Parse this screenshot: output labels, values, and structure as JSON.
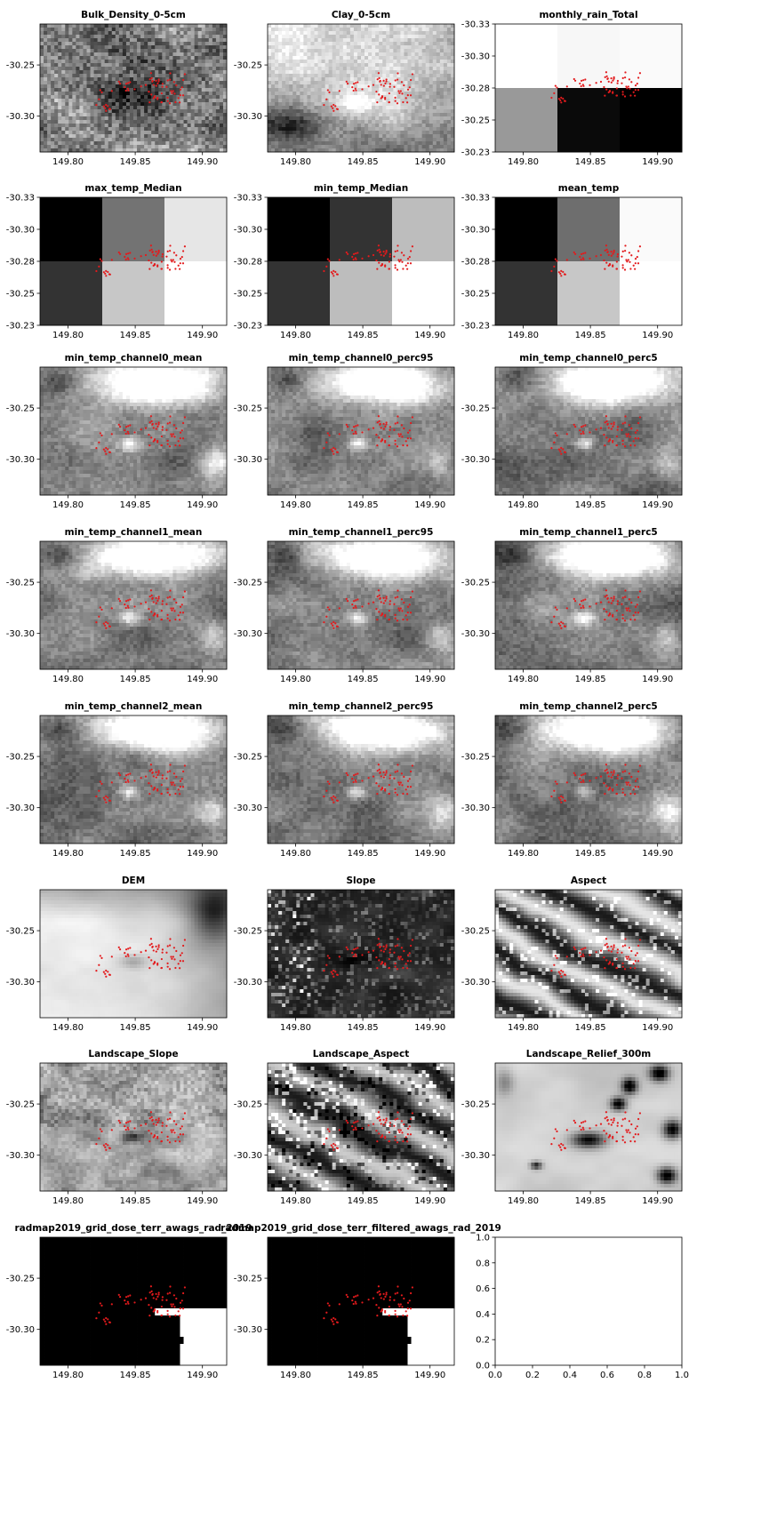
{
  "chart_data": [
    {
      "type": "heatmap",
      "title": "Bulk_Density_0-5cm",
      "texture": "bulk",
      "xticks": [
        "149.80",
        "149.85",
        "149.90"
      ],
      "yticks": [
        "-30.25",
        "-30.30"
      ]
    },
    {
      "type": "heatmap",
      "title": "Clay_0-5cm",
      "texture": "clay",
      "xticks": [
        "149.80",
        "149.85",
        "149.90"
      ],
      "yticks": [
        "-30.25",
        "-30.30"
      ]
    },
    {
      "type": "heatmap",
      "title": "monthly_rain_Total",
      "texture": "grid",
      "cells": [
        [
          1.0,
          0.97,
          0.98
        ],
        [
          0.6,
          0.04,
          0.0
        ]
      ],
      "xticks": [
        "149.80",
        "149.85",
        "149.90"
      ],
      "yticks": [
        "-30.33",
        "-30.30",
        "-30.28",
        "-30.25",
        "-30.23"
      ]
    },
    {
      "type": "heatmap",
      "title": "max_temp_Median",
      "texture": "grid",
      "cells": [
        [
          0.0,
          0.45,
          0.9
        ],
        [
          0.2,
          0.78,
          1.0
        ]
      ],
      "xticks": [
        "149.80",
        "149.85",
        "149.90"
      ],
      "yticks": [
        "-30.33",
        "-30.30",
        "-30.28",
        "-30.25",
        "-30.23"
      ]
    },
    {
      "type": "heatmap",
      "title": "min_temp_Median",
      "texture": "grid",
      "cells": [
        [
          0.0,
          0.2,
          0.74
        ],
        [
          0.2,
          0.74,
          1.0
        ]
      ],
      "xticks": [
        "149.80",
        "149.85",
        "149.90"
      ],
      "yticks": [
        "-30.33",
        "-30.30",
        "-30.28",
        "-30.25",
        "-30.23"
      ]
    },
    {
      "type": "heatmap",
      "title": "mean_temp",
      "texture": "grid",
      "cells": [
        [
          0.0,
          0.43,
          0.98
        ],
        [
          0.2,
          0.78,
          1.0
        ]
      ],
      "xticks": [
        "149.80",
        "149.85",
        "149.90"
      ],
      "yticks": [
        "-30.33",
        "-30.30",
        "-30.28",
        "-30.25",
        "-30.23"
      ]
    },
    {
      "type": "heatmap",
      "title": "min_temp_channel0_mean",
      "texture": "temp",
      "xticks": [
        "149.80",
        "149.85",
        "149.90"
      ],
      "yticks": [
        "-30.25",
        "-30.30"
      ]
    },
    {
      "type": "heatmap",
      "title": "min_temp_channel0_perc95",
      "texture": "temp",
      "xticks": [
        "149.80",
        "149.85",
        "149.90"
      ],
      "yticks": [
        "-30.25",
        "-30.30"
      ]
    },
    {
      "type": "heatmap",
      "title": "min_temp_channel0_perc5",
      "texture": "temp",
      "xticks": [
        "149.80",
        "149.85",
        "149.90"
      ],
      "yticks": [
        "-30.25",
        "-30.30"
      ]
    },
    {
      "type": "heatmap",
      "title": "min_temp_channel1_mean",
      "texture": "temp",
      "xticks": [
        "149.80",
        "149.85",
        "149.90"
      ],
      "yticks": [
        "-30.25",
        "-30.30"
      ]
    },
    {
      "type": "heatmap",
      "title": "min_temp_channel1_perc95",
      "texture": "temp",
      "xticks": [
        "149.80",
        "149.85",
        "149.90"
      ],
      "yticks": [
        "-30.25",
        "-30.30"
      ]
    },
    {
      "type": "heatmap",
      "title": "min_temp_channel1_perc5",
      "texture": "temp",
      "xticks": [
        "149.80",
        "149.85",
        "149.90"
      ],
      "yticks": [
        "-30.25",
        "-30.30"
      ]
    },
    {
      "type": "heatmap",
      "title": "min_temp_channel2_mean",
      "texture": "temp",
      "xticks": [
        "149.80",
        "149.85",
        "149.90"
      ],
      "yticks": [
        "-30.25",
        "-30.30"
      ]
    },
    {
      "type": "heatmap",
      "title": "min_temp_channel2_perc95",
      "texture": "temp",
      "xticks": [
        "149.80",
        "149.85",
        "149.90"
      ],
      "yticks": [
        "-30.25",
        "-30.30"
      ]
    },
    {
      "type": "heatmap",
      "title": "min_temp_channel2_perc5",
      "texture": "temp",
      "xticks": [
        "149.80",
        "149.85",
        "149.90"
      ],
      "yticks": [
        "-30.25",
        "-30.30"
      ]
    },
    {
      "type": "heatmap",
      "title": "DEM",
      "texture": "dem",
      "xticks": [
        "149.80",
        "149.85",
        "149.90"
      ],
      "yticks": [
        "-30.25",
        "-30.30"
      ]
    },
    {
      "type": "heatmap",
      "title": "Slope",
      "texture": "slope",
      "xticks": [
        "149.80",
        "149.85",
        "149.90"
      ],
      "yticks": [
        "-30.25",
        "-30.30"
      ]
    },
    {
      "type": "heatmap",
      "title": "Aspect",
      "texture": "aspect",
      "xticks": [
        "149.80",
        "149.85",
        "149.90"
      ],
      "yticks": [
        "-30.25",
        "-30.30"
      ]
    },
    {
      "type": "heatmap",
      "title": "Landscape_Slope",
      "texture": "lslope",
      "xticks": [
        "149.80",
        "149.85",
        "149.90"
      ],
      "yticks": [
        "-30.25",
        "-30.30"
      ]
    },
    {
      "type": "heatmap",
      "title": "Landscape_Aspect",
      "texture": "laspect",
      "xticks": [
        "149.80",
        "149.85",
        "149.90"
      ],
      "yticks": [
        "-30.25",
        "-30.30"
      ]
    },
    {
      "type": "heatmap",
      "title": "Landscape_Relief_300m",
      "texture": "relief",
      "xticks": [
        "149.80",
        "149.85",
        "149.90"
      ],
      "yticks": [
        "-30.25",
        "-30.30"
      ]
    },
    {
      "type": "heatmap",
      "title": "radmap2019_grid_dose_terr_awags_rad_2019",
      "texture": "rad",
      "xticks": [
        "149.80",
        "149.85",
        "149.90"
      ],
      "yticks": [
        "-30.25",
        "-30.30"
      ]
    },
    {
      "type": "heatmap",
      "title": "radmap2019_grid_dose_terr_filtered_awags_rad_2019",
      "texture": "rad",
      "xticks": [
        "149.80",
        "149.85",
        "149.90"
      ],
      "yticks": [
        "-30.25",
        "-30.30"
      ]
    },
    {
      "type": "empty",
      "title": "",
      "xticks": [
        "0.0",
        "0.2",
        "0.4",
        "0.6",
        "0.8",
        "1.0"
      ],
      "yticks": [
        "0.0",
        "0.2",
        "0.4",
        "0.6",
        "0.8",
        "1.0"
      ]
    }
  ],
  "colors": {
    "points": "#e31a1c",
    "frame": "#000000",
    "background": "#ffffff"
  }
}
